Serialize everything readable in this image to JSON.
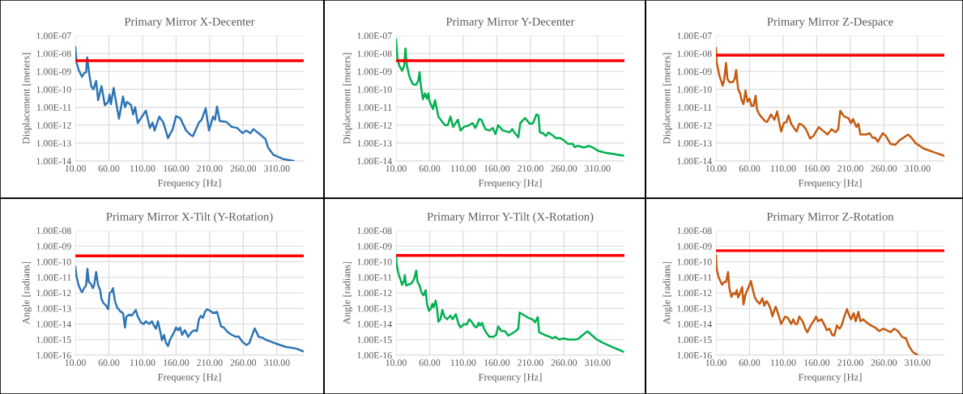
{
  "chart_data": [
    {
      "type": "line",
      "title": "Primary Mirror X-Decenter",
      "xlabel": "Frequency [Hz]",
      "ylabel": "Displacement [meters]",
      "log": "y",
      "grid": true,
      "xlim": [
        10,
        350
      ],
      "xticks": [
        {
          "value": 10,
          "label": "10.00"
        },
        {
          "value": 60,
          "label": "60.00"
        },
        {
          "value": 110,
          "label": "110.00"
        },
        {
          "value": 160,
          "label": "160.00"
        },
        {
          "value": 210,
          "label": "210.00"
        },
        {
          "value": 260,
          "label": "260.00"
        },
        {
          "value": 310,
          "label": "310.00"
        }
      ],
      "ylim": [
        1e-14,
        1e-07
      ],
      "yticks": [
        {
          "value": 1e-07,
          "label": "1.00E-07"
        },
        {
          "value": 1e-08,
          "label": "1.00E-08"
        },
        {
          "value": 1e-09,
          "label": "1.00E-09"
        },
        {
          "value": 1e-10,
          "label": "1.00E-10"
        },
        {
          "value": 1e-11,
          "label": "1.00E-11"
        },
        {
          "value": 1e-12,
          "label": "1.00E-12"
        },
        {
          "value": 1e-13,
          "label": "1.00E-13"
        },
        {
          "value": 1e-14,
          "label": "1.00E-14"
        }
      ],
      "ref_lines": [
        {
          "axis": "y",
          "value": 4e-09,
          "color": "#ff0000",
          "line_style": "solid"
        }
      ],
      "x": [
        10,
        12,
        15,
        20,
        23,
        26,
        27.6,
        31,
        34,
        37,
        41,
        44,
        49,
        54,
        59,
        61,
        63,
        67,
        75,
        81,
        84,
        87,
        93,
        96,
        99,
        103,
        115,
        121,
        125,
        128,
        135,
        141,
        148,
        155,
        160,
        166,
        175,
        181,
        185,
        194,
        198,
        204,
        209,
        215,
        218,
        221,
        225,
        235,
        243,
        251,
        259,
        264,
        271,
        275,
        283,
        293,
        297,
        305,
        319,
        335
      ],
      "series": [
        {
          "color": "#2e75b6",
          "values": [
            2.2e-08,
            3e-09,
            1.2e-09,
            5e-10,
            8e-10,
            9e-10,
            6e-09,
            6e-10,
            1.4e-10,
            1e-10,
            3e-10,
            2.5e-11,
            1.5e-10,
            1.3e-11,
            2e-11,
            5e-11,
            1.5e-11,
            1.2e-10,
            2.3e-12,
            4e-11,
            1e-11,
            2e-11,
            1.3e-11,
            4e-12,
            1e-11,
            1.3e-12,
            6.5e-12,
            7e-13,
            1.4e-12,
            5e-13,
            3e-12,
            1.4e-12,
            1.9e-13,
            6e-13,
            3.2e-12,
            2.5e-12,
            5e-13,
            3e-13,
            2.4e-13,
            1.4e-12,
            2e-12,
            8.7e-12,
            5e-13,
            3e-12,
            2e-12,
            1.1e-11,
            1.7e-12,
            1.5e-12,
            8e-13,
            7e-13,
            3.6e-13,
            5e-13,
            3.6e-13,
            6e-13,
            3.5e-13,
            1.7e-13,
            5.5e-14,
            2.2e-14,
            1.3e-14,
            1e-14
          ]
        }
      ]
    },
    {
      "type": "line",
      "title": "Primary Mirror Y-Decenter",
      "xlabel": "Frequency [Hz]",
      "ylabel": "Displacement [meters]",
      "log": "y",
      "grid": true,
      "xlim": [
        10,
        350
      ],
      "xticks": [
        {
          "value": 10,
          "label": "10.00"
        },
        {
          "value": 60,
          "label": "60.00"
        },
        {
          "value": 110,
          "label": "110.00"
        },
        {
          "value": 160,
          "label": "160.00"
        },
        {
          "value": 210,
          "label": "210.00"
        },
        {
          "value": 260,
          "label": "260.00"
        },
        {
          "value": 310,
          "label": "310.00"
        }
      ],
      "ylim": [
        1e-14,
        1e-07
      ],
      "yticks": [
        {
          "value": 1e-07,
          "label": "1.00E-07"
        },
        {
          "value": 1e-08,
          "label": "1.00E-08"
        },
        {
          "value": 1e-09,
          "label": "1.00E-09"
        },
        {
          "value": 1e-10,
          "label": "1.00E-10"
        },
        {
          "value": 1e-11,
          "label": "1.00E-11"
        },
        {
          "value": 1e-12,
          "label": "1.00E-12"
        },
        {
          "value": 1e-13,
          "label": "1.00E-13"
        },
        {
          "value": 1e-14,
          "label": "1.00E-14"
        }
      ],
      "ref_lines": [
        {
          "axis": "y",
          "value": 4e-09,
          "color": "#ff0000",
          "line_style": "solid"
        }
      ],
      "x": [
        10,
        12,
        15,
        19,
        22,
        24,
        26,
        30,
        35,
        40,
        43,
        45,
        47,
        50,
        53,
        56,
        58,
        60,
        63,
        65,
        68,
        73,
        79,
        83,
        87,
        91,
        95,
        102,
        106,
        111,
        119,
        124,
        128,
        134,
        137,
        143,
        149,
        154,
        158,
        162,
        169,
        179,
        183,
        187,
        192,
        195,
        202,
        209,
        214,
        219,
        222,
        224,
        229,
        233,
        237,
        243,
        248,
        255,
        261,
        266,
        273,
        276,
        281,
        290,
        297,
        303,
        311,
        323,
        335,
        348
      ],
      "series": [
        {
          "color": "#00b050",
          "values": [
            6e-08,
            5.5e-09,
            2e-09,
            1.1e-09,
            2e-09,
            1.9e-08,
            2.3e-09,
            5e-10,
            1.9e-10,
            1.8e-10,
            3e-10,
            9e-10,
            1.5e-10,
            2.8e-11,
            6e-11,
            3e-11,
            6e-11,
            2e-11,
            1.2e-11,
            7.9e-12,
            2.5e-11,
            3e-12,
            1.5e-12,
            1e-12,
            1e-12,
            3e-12,
            8e-13,
            2e-12,
            5e-13,
            8e-13,
            1e-12,
            1.3e-12,
            7e-13,
            2.2e-12,
            2e-12,
            6e-13,
            5e-13,
            7e-13,
            3.2e-13,
            1e-12,
            5e-13,
            4e-13,
            6e-13,
            3.5e-13,
            2.1e-13,
            1.3e-12,
            2.5e-12,
            1.2e-12,
            1.3e-12,
            4e-12,
            3.5e-12,
            4e-13,
            3.5e-13,
            2.5e-13,
            3.9e-13,
            2.7e-13,
            1.9e-13,
            1.9e-13,
            1.3e-13,
            9e-14,
            9e-14,
            6e-14,
            7e-14,
            5.6e-14,
            7e-14,
            5.6e-14,
            3.7e-14,
            2.8e-14,
            2.4e-14,
            2e-14
          ]
        }
      ]
    },
    {
      "type": "line",
      "title": "Primary Mirror Z-Despace",
      "xlabel": "Frequency [Hz]",
      "ylabel": "Displacement [meters]",
      "log": "y",
      "grid": true,
      "xlim": [
        10,
        350
      ],
      "xticks": [
        {
          "value": 10,
          "label": "10.00"
        },
        {
          "value": 60,
          "label": "60.00"
        },
        {
          "value": 110,
          "label": "110.00"
        },
        {
          "value": 160,
          "label": "160.00"
        },
        {
          "value": 210,
          "label": "210.00"
        },
        {
          "value": 260,
          "label": "260.00"
        },
        {
          "value": 310,
          "label": "310.00"
        }
      ],
      "ylim": [
        1e-14,
        1e-07
      ],
      "yticks": [
        {
          "value": 1e-07,
          "label": "1.00E-07"
        },
        {
          "value": 1e-08,
          "label": "1.00E-08"
        },
        {
          "value": 1e-09,
          "label": "1.00E-09"
        },
        {
          "value": 1e-10,
          "label": "1.00E-10"
        },
        {
          "value": 1e-11,
          "label": "1.00E-11"
        },
        {
          "value": 1e-12,
          "label": "1.00E-12"
        },
        {
          "value": 1e-13,
          "label": "1.00E-13"
        },
        {
          "value": 1e-14,
          "label": "1.00E-14"
        }
      ],
      "ref_lines": [
        {
          "axis": "y",
          "value": 8e-09,
          "color": "#ff0000",
          "line_style": "solid"
        }
      ],
      "x": [
        10,
        11,
        15,
        20,
        22,
        25,
        27,
        30,
        35,
        38,
        40,
        43,
        46,
        48,
        51,
        54,
        57,
        60,
        63,
        66,
        69,
        71,
        74,
        79,
        83,
        86,
        92,
        97,
        101,
        104,
        107,
        111,
        115,
        118,
        122,
        126,
        130,
        134,
        139,
        144,
        150,
        155,
        163,
        169,
        176,
        182,
        188,
        192,
        195,
        201,
        207,
        211,
        214,
        219,
        222,
        225,
        233,
        239,
        243,
        247,
        251,
        258,
        263,
        270,
        277,
        283,
        289,
        296,
        301,
        307,
        319,
        335,
        349
      ],
      "series": [
        {
          "color": "#c55a11",
          "values": [
            2e-08,
            3.3e-09,
            6e-10,
            1.6e-10,
            3e-10,
            3e-09,
            4e-10,
            2.5e-10,
            2.5e-10,
            4e-10,
            1.2e-09,
            1e-10,
            6e-11,
            2.6e-11,
            1.5e-11,
            8.6e-11,
            2e-11,
            3e-11,
            1.2e-11,
            1.2e-11,
            4.4e-11,
            8e-12,
            4.3e-12,
            2.5e-12,
            1.7e-12,
            1.5e-12,
            4e-12,
            2e-12,
            5.8e-12,
            1.5e-12,
            4.4e-13,
            1.3e-12,
            1.5e-12,
            3.5e-12,
            1.2e-12,
            7e-13,
            4.4e-13,
            1.2e-12,
            1e-12,
            6e-13,
            1.8e-13,
            2.5e-13,
            7.8e-13,
            5e-13,
            3e-13,
            6e-13,
            4e-13,
            6e-13,
            6.3e-12,
            3e-12,
            2.5e-12,
            1.3e-12,
            2.2e-12,
            8e-13,
            1.2e-12,
            3e-13,
            3e-13,
            3.5e-13,
            2e-13,
            2e-13,
            1.2e-13,
            3.5e-13,
            2.5e-13,
            8.8e-14,
            8e-14,
            1.4e-13,
            2e-13,
            3e-13,
            2e-13,
            1e-13,
            5e-14,
            3e-14,
            2e-14
          ]
        }
      ]
    },
    {
      "type": "line",
      "title": "Primary Mirror X-Tilt (Y-Rotation)",
      "xlabel": "Frequency [Hz]",
      "ylabel": "Angle [radians]",
      "log": "y",
      "grid": true,
      "xlim": [
        10,
        350
      ],
      "xticks": [
        {
          "value": 10,
          "label": "10.00"
        },
        {
          "value": 60,
          "label": "60.00"
        },
        {
          "value": 110,
          "label": "110.00"
        },
        {
          "value": 160,
          "label": "160.00"
        },
        {
          "value": 210,
          "label": "210.00"
        },
        {
          "value": 260,
          "label": "260.00"
        },
        {
          "value": 310,
          "label": "310.00"
        }
      ],
      "ylim": [
        1e-16,
        1e-08
      ],
      "yticks": [
        {
          "value": 1e-08,
          "label": "1.00E-08"
        },
        {
          "value": 1e-09,
          "label": "1.00E-09"
        },
        {
          "value": 1e-10,
          "label": "1.00E-10"
        },
        {
          "value": 1e-11,
          "label": "1.00E-11"
        },
        {
          "value": 1e-12,
          "label": "1.00E-12"
        },
        {
          "value": 1e-13,
          "label": "1.00E-13"
        },
        {
          "value": 1e-14,
          "label": "1.00E-14"
        },
        {
          "value": 1e-15,
          "label": "1.00E-15"
        },
        {
          "value": 1e-16,
          "label": "1.00E-16"
        }
      ],
      "ref_lines": [
        {
          "axis": "y",
          "value": 2.4e-10,
          "color": "#ff0000",
          "line_style": "solid"
        }
      ],
      "x": [
        10,
        12,
        15,
        18,
        20,
        23,
        26,
        28,
        30,
        33,
        36,
        38,
        41,
        44,
        47,
        49,
        52,
        56,
        59,
        61,
        64,
        66,
        69,
        72,
        77,
        81,
        84,
        86,
        90,
        94,
        98,
        100,
        103,
        108,
        112,
        115,
        120,
        124,
        127,
        130,
        133,
        137,
        139,
        142,
        145,
        148,
        151,
        157,
        160,
        163,
        166,
        169,
        173,
        178,
        183,
        187,
        191,
        194,
        197,
        200,
        203,
        206,
        211,
        215,
        221,
        224,
        227,
        231,
        237,
        243,
        249,
        253,
        259,
        265,
        269,
        277,
        283,
        289,
        293,
        299,
        309,
        323,
        337,
        349
      ],
      "series": [
        {
          "color": "#2e75b6",
          "values": [
            4.7e-11,
            1e-11,
            3e-12,
            1.5e-12,
            1.1e-12,
            2e-12,
            3e-12,
            3.5e-11,
            5e-12,
            4e-12,
            2e-12,
            3e-12,
            2.2e-11,
            3e-12,
            1.5e-12,
            4e-13,
            2.2e-13,
            1.5e-13,
            9e-14,
            1e-12,
            1.2e-12,
            2e-12,
            3e-13,
            1.2e-13,
            6.5e-14,
            5e-14,
            6e-15,
            3e-14,
            4e-14,
            3.5e-14,
            6e-14,
            8e-14,
            3e-14,
            1.2e-14,
            1e-14,
            1.5e-14,
            1e-14,
            1.5e-14,
            8e-15,
            5e-15,
            1.5e-14,
            2.5e-15,
            9e-16,
            2e-15,
            6e-16,
            3.9e-16,
            1e-15,
            3e-15,
            6e-15,
            4e-15,
            6e-15,
            2e-15,
            4e-15,
            1.5e-15,
            3e-15,
            4e-15,
            3.5e-15,
            2e-14,
            3.4e-14,
            2.5e-14,
            6e-14,
            8.8e-14,
            7e-14,
            5e-14,
            6e-14,
            2e-14,
            7e-15,
            6e-15,
            3e-15,
            2e-15,
            1.5e-15,
            1.6e-15,
            7e-16,
            4.5e-16,
            6e-16,
            5.3e-15,
            1.5e-15,
            1.3e-15,
            1e-15,
            8e-16,
            5.5e-16,
            3.4e-16,
            2.8e-16,
            1.8e-16
          ]
        }
      ]
    },
    {
      "type": "line",
      "title": "Primary Mirror Y-Tilt (X-Rotation)",
      "xlabel": "Frequency [Hz]",
      "ylabel": "Angle [radians]",
      "log": "y",
      "grid": true,
      "xlim": [
        10,
        350
      ],
      "xticks": [
        {
          "value": 10,
          "label": "10.00"
        },
        {
          "value": 60,
          "label": "60.00"
        },
        {
          "value": 110,
          "label": "110.00"
        },
        {
          "value": 160,
          "label": "160.00"
        },
        {
          "value": 210,
          "label": "210.00"
        },
        {
          "value": 260,
          "label": "260.00"
        },
        {
          "value": 310,
          "label": "310.00"
        }
      ],
      "ylim": [
        1e-16,
        1e-08
      ],
      "yticks": [
        {
          "value": 1e-08,
          "label": "1.00E-08"
        },
        {
          "value": 1e-09,
          "label": "1.00E-09"
        },
        {
          "value": 1e-10,
          "label": "1.00E-10"
        },
        {
          "value": 1e-11,
          "label": "1.00E-11"
        },
        {
          "value": 1e-12,
          "label": "1.00E-12"
        },
        {
          "value": 1e-13,
          "label": "1.00E-13"
        },
        {
          "value": 1e-14,
          "label": "1.00E-14"
        },
        {
          "value": 1e-15,
          "label": "1.00E-15"
        },
        {
          "value": 1e-16,
          "label": "1.00E-16"
        }
      ],
      "ref_lines": [
        {
          "axis": "y",
          "value": 2.5e-10,
          "color": "#ff0000",
          "line_style": "solid"
        }
      ],
      "x": [
        10,
        11,
        14,
        17,
        19,
        22,
        23,
        25,
        29,
        33,
        37,
        40,
        42,
        45,
        48,
        51,
        54,
        56,
        59,
        62,
        64,
        66,
        69,
        71,
        73,
        76,
        79,
        82,
        86,
        91,
        94,
        99,
        103,
        106,
        111,
        115,
        119,
        122,
        127,
        130,
        133,
        135,
        138,
        141,
        145,
        149,
        155,
        159,
        162,
        167,
        172,
        177,
        183,
        188,
        192,
        194,
        201,
        207,
        213,
        217,
        221,
        223,
        231,
        239,
        243,
        247,
        253,
        259,
        267,
        275,
        281,
        287,
        295,
        301,
        309,
        319,
        331,
        348
      ],
      "series": [
        {
          "color": "#00b050",
          "values": [
            2.3e-10,
            6e-11,
            1.5e-11,
            6.3e-12,
            3.3e-12,
            6e-12,
            1.4e-11,
            3e-12,
            3.5e-12,
            4e-12,
            8e-12,
            2.7e-11,
            5e-12,
            3e-12,
            1e-12,
            7e-13,
            1.5e-12,
            2e-13,
            7e-14,
            1e-13,
            2e-13,
            1.2e-13,
            3.2e-13,
            1e-13,
            1.4e-14,
            2e-14,
            8e-14,
            3e-14,
            2e-14,
            3.5e-14,
            2e-14,
            4.3e-14,
            1e-14,
            6e-15,
            1e-14,
            9e-15,
            2e-14,
            1.5e-14,
            7e-15,
            6e-15,
            1.2e-14,
            8e-15,
            1.2e-14,
            5e-15,
            2.5e-15,
            1.5e-15,
            1.5e-15,
            2e-15,
            7e-15,
            3.5e-15,
            3.5e-15,
            1.8e-15,
            2.5e-15,
            3.5e-15,
            5e-15,
            5.5e-14,
            3.5e-14,
            2.5e-14,
            2e-14,
            1.3e-14,
            2.8e-14,
            3e-15,
            2e-15,
            1.5e-15,
            1.2e-15,
            1.5e-15,
            1e-15,
            1.2e-15,
            1e-15,
            1e-15,
            1.1e-15,
            1.8e-15,
            3.4e-15,
            2e-15,
            1e-15,
            6e-16,
            3.5e-16,
            1.7e-16
          ]
        }
      ]
    },
    {
      "type": "line",
      "title": "Primary Mirror Z-Rotation",
      "xlabel": "Frequency [Hz]",
      "ylabel": "Angle [radians]",
      "log": "y",
      "grid": true,
      "xlim": [
        10,
        350
      ],
      "xticks": [
        {
          "value": 10,
          "label": "10.00"
        },
        {
          "value": 60,
          "label": "60.00"
        },
        {
          "value": 110,
          "label": "110.00"
        },
        {
          "value": 160,
          "label": "160.00"
        },
        {
          "value": 210,
          "label": "210.00"
        },
        {
          "value": 260,
          "label": "260.00"
        },
        {
          "value": 310,
          "label": "310.00"
        }
      ],
      "ylim": [
        1e-16,
        1e-08
      ],
      "yticks": [
        {
          "value": 1e-08,
          "label": "1.00E-08"
        },
        {
          "value": 1e-09,
          "label": "1.00E-09"
        },
        {
          "value": 1e-10,
          "label": "1.00E-10"
        },
        {
          "value": 1e-11,
          "label": "1.00E-11"
        },
        {
          "value": 1e-12,
          "label": "1.00E-12"
        },
        {
          "value": 1e-13,
          "label": "1.00E-13"
        },
        {
          "value": 1e-14,
          "label": "1.00E-14"
        },
        {
          "value": 1e-15,
          "label": "1.00E-15"
        },
        {
          "value": 1e-16,
          "label": "1.00E-16"
        }
      ],
      "ref_lines": [
        {
          "axis": "y",
          "value": 5.1e-10,
          "color": "#ff0000",
          "line_style": "solid"
        }
      ],
      "x": [
        10,
        11,
        14,
        19,
        22,
        25,
        28,
        30,
        33,
        36,
        39,
        41,
        43,
        46,
        49,
        51,
        54,
        58,
        62,
        65,
        68,
        71,
        75,
        79,
        82,
        85,
        88,
        91,
        94,
        97,
        99,
        103,
        107,
        113,
        117,
        122,
        125,
        128,
        131,
        134,
        139,
        143,
        146,
        151,
        157,
        159,
        162,
        167,
        172,
        175,
        179,
        183,
        186,
        190,
        194,
        197,
        201,
        205,
        209,
        211,
        215,
        218,
        222,
        225,
        229,
        235,
        241,
        247,
        253,
        259,
        264,
        270,
        275,
        281,
        287,
        293,
        297,
        303,
        310
      ],
      "series": [
        {
          "color": "#c55a11",
          "values": [
            2.5e-10,
            3.5e-11,
            1e-11,
            3.3e-12,
            5e-12,
            5e-12,
            2.2e-11,
            2e-12,
            5.5e-13,
            1e-12,
            8e-13,
            1.5e-12,
            5e-13,
            1e-12,
            2.4e-12,
            1.8e-13,
            8e-13,
            2e-12,
            5.8e-12,
            1.5e-12,
            5e-13,
            3e-13,
            2e-13,
            4.5e-13,
            1.5e-13,
            3e-13,
            2e-13,
            1e-13,
            3.1e-14,
            8e-14,
            1.3e-13,
            4e-14,
            1e-14,
            3e-14,
            2.5e-14,
            1e-14,
            2e-14,
            1e-14,
            1e-14,
            3e-14,
            1.5e-14,
            5e-15,
            3e-15,
            8e-15,
            2e-14,
            3e-14,
            1.5e-14,
            2e-14,
            8e-15,
            4e-15,
            5e-15,
            2e-15,
            1.8e-15,
            8e-15,
            5e-15,
            8e-15,
            3e-14,
            9e-14,
            3e-14,
            2e-14,
            5e-14,
            1.5e-14,
            6e-14,
            1.5e-14,
            2e-14,
            1.2e-14,
            8e-15,
            6e-15,
            3.5e-15,
            5e-15,
            4e-15,
            3e-15,
            5e-15,
            3.5e-15,
            1.5e-15,
            1.2e-15,
            4e-16,
            1.6e-16,
            1e-16
          ]
        }
      ]
    }
  ]
}
